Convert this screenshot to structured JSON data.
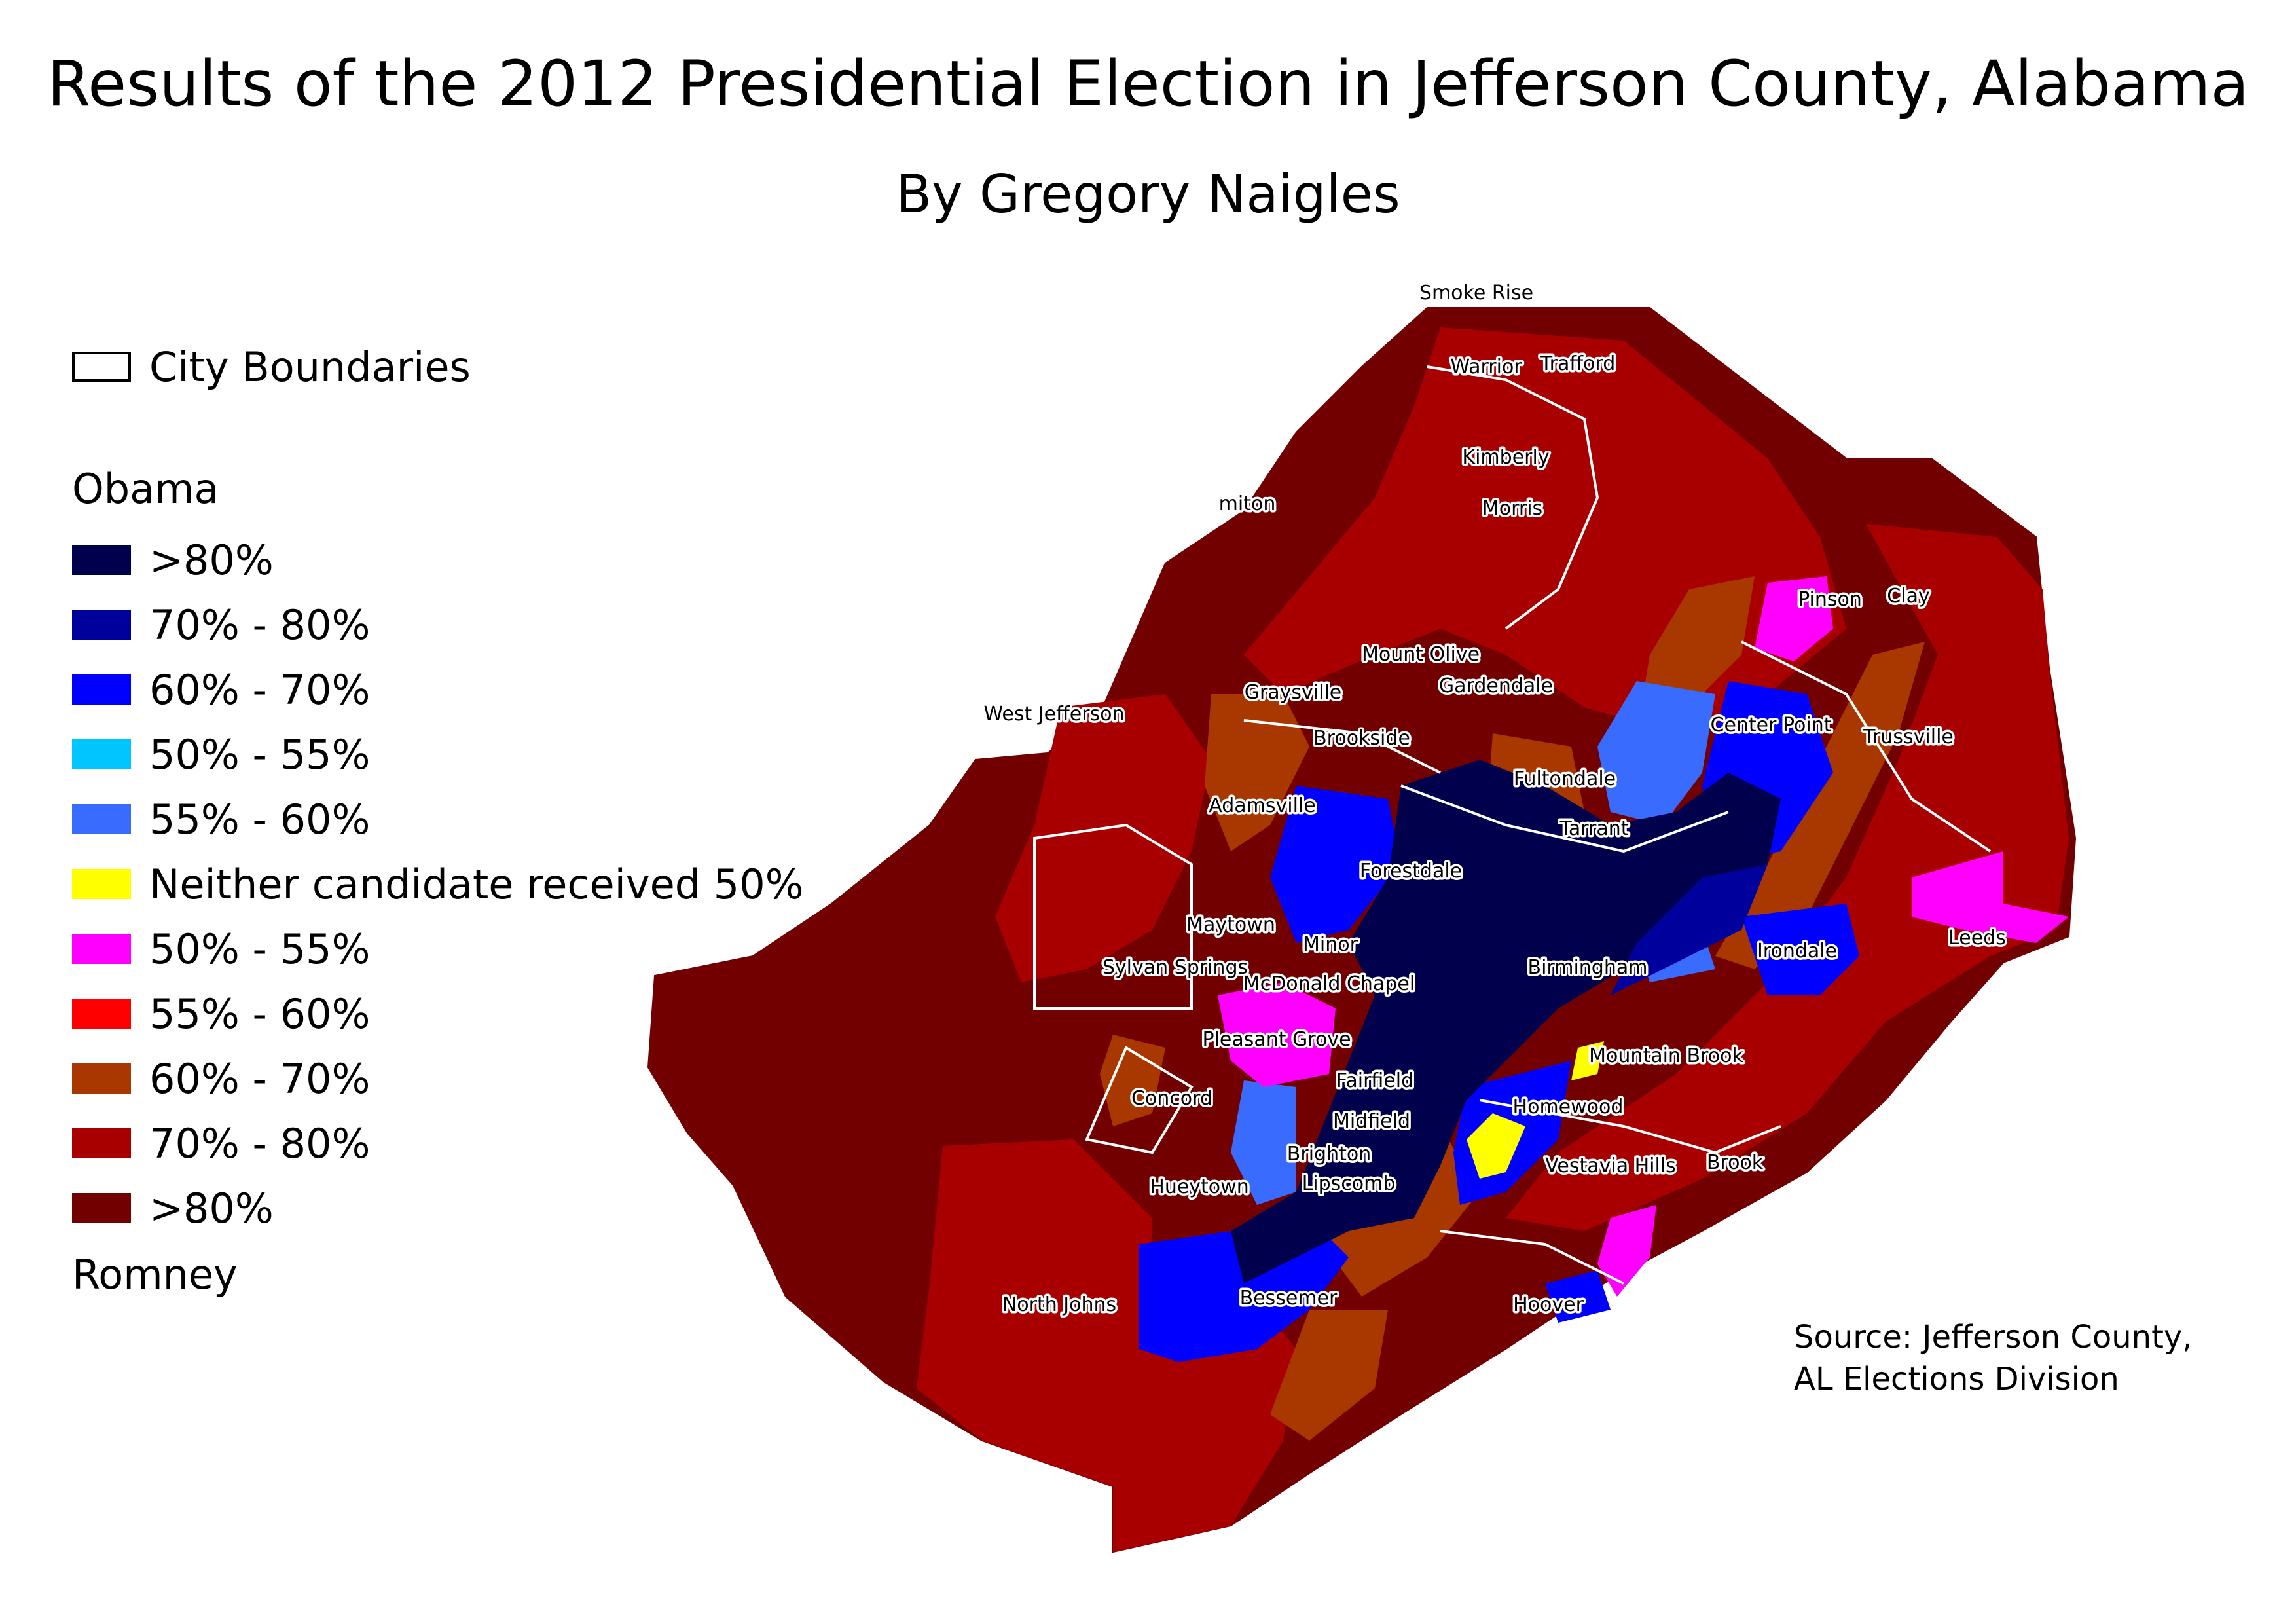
{
  "title": "Results of the 2012 Presidential Election in Jefferson County, Alabama",
  "subtitle": "By Gregory Naigles",
  "legend": {
    "boundary_label": "City Boundaries",
    "obama_heading": "Obama",
    "romney_heading": "Romney",
    "items": [
      {
        "label": ">80%",
        "color": "#00004c"
      },
      {
        "label": "70% - 80%",
        "color": "#00009c"
      },
      {
        "label": "60% - 70%",
        "color": "#0000ff"
      },
      {
        "label": "50% - 55%",
        "color": "#00c5ff"
      },
      {
        "label": "55% - 60%",
        "color": "#3a6bff"
      },
      {
        "label": "Neither candidate received 50%",
        "color": "#ffff00"
      },
      {
        "label": "50% - 55%",
        "color": "#ff00ff"
      },
      {
        "label": "55% - 60%",
        "color": "#ff0000"
      },
      {
        "label": "60% - 70%",
        "color": "#a83800"
      },
      {
        "label": "70% - 80%",
        "color": "#a80000"
      },
      {
        "label": ">80%",
        "color": "#730000"
      }
    ]
  },
  "source": {
    "line1": "Source: Jefferson County,",
    "line2": "AL Elections Division"
  },
  "cities": [
    "Smoke Rise",
    "Warrior",
    "Trafford",
    "Kimberly",
    "Morris",
    "miton",
    "Pinson",
    "Clay",
    "Mount Olive",
    "Gardendale",
    "Graysville",
    "West Jefferson",
    "Brookside",
    "Center Point",
    "Trussville",
    "Fultondale",
    "Adamsville",
    "Tarrant",
    "Forestdale",
    "Maytown",
    "Minor",
    "Irondale",
    "Leeds",
    "Sylvan Springs",
    "McDonald Chapel",
    "Birmingham",
    "Pleasant Grove",
    "Mountain Brook",
    "Fairfield",
    "Concord",
    "Homewood",
    "Midfield",
    "Brighton",
    "Vestavia Hills",
    "Brook",
    "Lipscomb",
    "Hueytown",
    "Hoover",
    "Bessemer",
    "North Johns"
  ]
}
